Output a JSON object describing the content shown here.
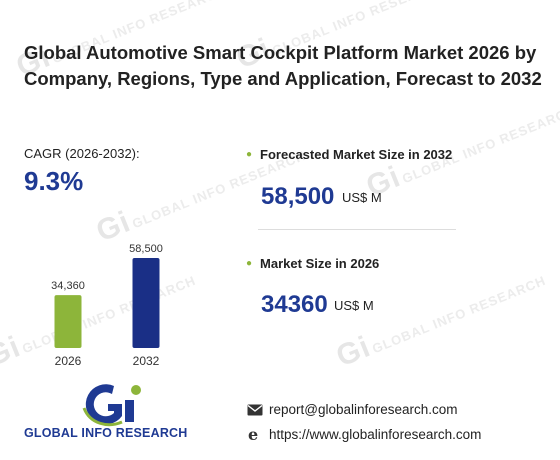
{
  "title": "Global Automotive Smart Cockpit Platform Market 2026 by Company, Regions, Type and Application, Forecast to 2032",
  "cagr": {
    "label": "CAGR (2026-2032):",
    "value": "9.3%"
  },
  "forecast": {
    "label": "Forecasted Market Size in 2032",
    "value": "58,500",
    "unit": "US$ M"
  },
  "current": {
    "label": "Market Size in 2026",
    "value": "34360",
    "unit": "US$ M"
  },
  "contact": {
    "email": "report@globalinforesearch.com",
    "website": "https://www.globalinforesearch.com"
  },
  "brand": {
    "name": "GLOBAL INFO RESEARCH",
    "watermark": "GLOBAL INFO RESEARCH"
  },
  "colors": {
    "accent_blue": "#1f3a93",
    "accent_green": "#8db53a",
    "bar_2032": "#1a2f86",
    "bar_2026": "#8db53a"
  },
  "chart_data": {
    "type": "bar",
    "categories": [
      "2026",
      "2032"
    ],
    "values": [
      34360,
      58500
    ],
    "value_labels": [
      "34,360",
      "58,500"
    ],
    "colors": [
      "#8db53a",
      "#1a2f86"
    ],
    "ylim": [
      0,
      58500
    ]
  }
}
